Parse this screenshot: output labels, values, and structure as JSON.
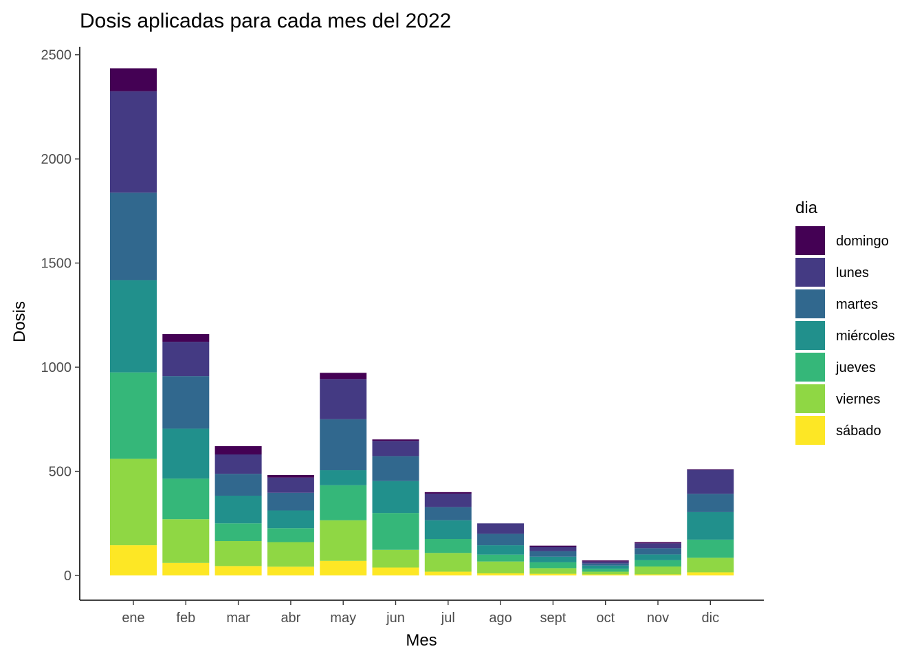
{
  "chart_data": {
    "type": "bar",
    "stacked": true,
    "title": "Dosis aplicadas para cada mes del 2022",
    "xlabel": "Mes",
    "ylabel": "Dosis",
    "ylim": [
      0,
      2500
    ],
    "yticks": [
      0,
      500,
      1000,
      1500,
      2000,
      2500
    ],
    "grid": false,
    "legend_position": "right",
    "legend_title": "dia",
    "categories": [
      "ene",
      "feb",
      "mar",
      "abr",
      "may",
      "jun",
      "jul",
      "ago",
      "sept",
      "oct",
      "nov",
      "dic"
    ],
    "series": [
      {
        "name": "sábado",
        "color": "#FDE725",
        "values": [
          145,
          60,
          45,
          42,
          70,
          38,
          18,
          10,
          8,
          5,
          5,
          15
        ]
      },
      {
        "name": "viernes",
        "color": "#8FD744",
        "values": [
          415,
          210,
          120,
          118,
          195,
          85,
          90,
          57,
          27,
          13,
          38,
          70
        ]
      },
      {
        "name": "jueves",
        "color": "#35B779",
        "values": [
          415,
          195,
          85,
          67,
          168,
          177,
          67,
          33,
          28,
          14,
          30,
          87
        ]
      },
      {
        "name": "miércoles",
        "color": "#21908C",
        "values": [
          443,
          240,
          133,
          85,
          72,
          153,
          90,
          45,
          27,
          15,
          28,
          132
        ]
      },
      {
        "name": "martes",
        "color": "#31688E",
        "values": [
          420,
          252,
          105,
          85,
          245,
          120,
          63,
          55,
          27,
          10,
          30,
          88
        ]
      },
      {
        "name": "lunes",
        "color": "#443A83",
        "values": [
          487,
          165,
          93,
          73,
          193,
          73,
          65,
          50,
          20,
          10,
          23,
          115
        ]
      },
      {
        "name": "domingo",
        "color": "#440154",
        "values": [
          110,
          37,
          40,
          12,
          30,
          7,
          7,
          0,
          6,
          5,
          6,
          3
        ]
      }
    ],
    "legend_order": [
      "domingo",
      "lunes",
      "martes",
      "miércoles",
      "jueves",
      "viernes",
      "sábado"
    ]
  }
}
